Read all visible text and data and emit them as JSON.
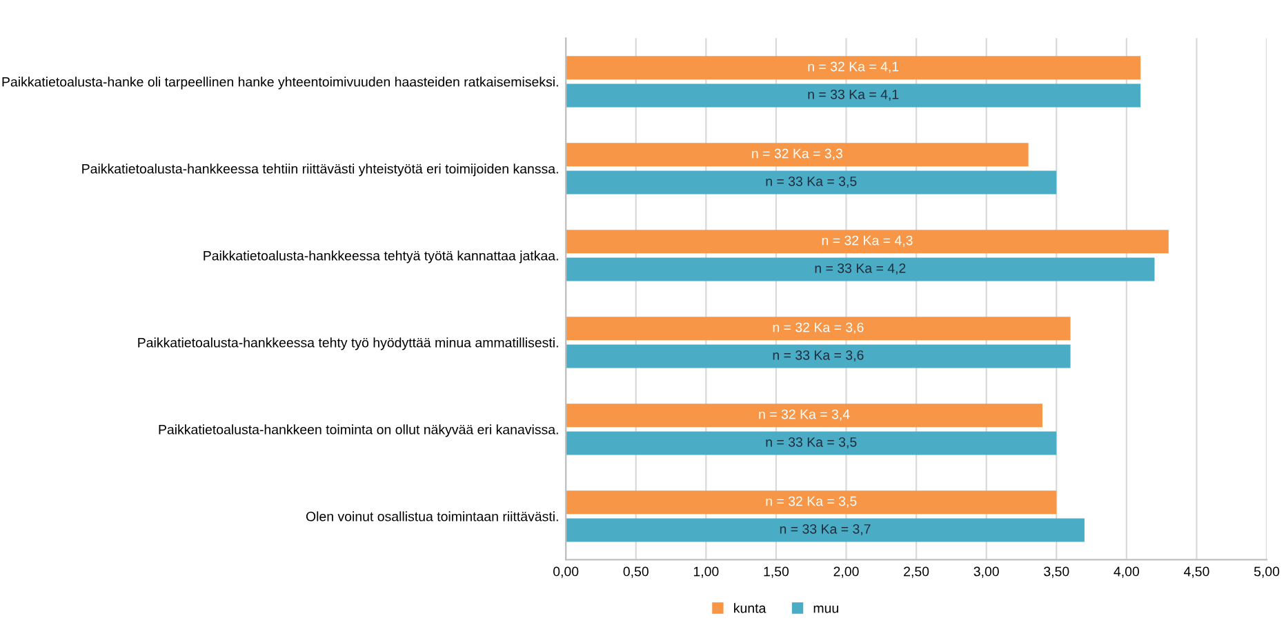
{
  "chart_data": {
    "type": "bar",
    "orientation": "horizontal",
    "categories": [
      "Paikkatietoalusta-hanke oli tarpeellinen hanke yhteentoimivuuden haasteiden ratkaisemiseksi.",
      "Paikkatietoalusta-hankkeessa tehtiin riittävästi yhteistyötä eri toimijoiden kanssa.",
      "Paikkatietoalusta-hankkeessa tehtyä työtä kannattaa jatkaa.",
      "Paikkatietoalusta-hankkeessa tehty työ hyödyttää minua ammatillisesti.",
      "Paikkatietoalusta-hankkeen toiminta on ollut näkyvää eri kanavissa.",
      "Olen voinut osallistua toimintaan riittävästi."
    ],
    "series": [
      {
        "name": "kunta",
        "color": "#f79646",
        "values": [
          4.1,
          3.3,
          4.3,
          3.6,
          3.4,
          3.5
        ],
        "value_labels": [
          "n = 32 Ka = 4,1",
          "n = 32 Ka = 3,3",
          "n = 32 Ka = 4,3",
          "n = 32 Ka = 3,6",
          "n = 32 Ka = 3,4",
          "n = 32 Ka = 3,5"
        ]
      },
      {
        "name": "muu",
        "color": "#4bacc6",
        "values": [
          4.1,
          3.5,
          4.2,
          3.6,
          3.5,
          3.7
        ],
        "value_labels": [
          "n = 33 Ka = 4,1",
          "n = 33 Ka = 3,5",
          "n = 33 Ka = 4,2",
          "n = 33 Ka = 3,6",
          "n = 33 Ka = 3,5",
          "n = 33 Ka = 3,7"
        ]
      }
    ],
    "xlim": [
      0,
      5
    ],
    "xticks": [
      {
        "value": 0,
        "label": "0,00"
      },
      {
        "value": 0.5,
        "label": "0,50"
      },
      {
        "value": 1,
        "label": "1,00"
      },
      {
        "value": 1.5,
        "label": "1,50"
      },
      {
        "value": 2,
        "label": "2,00"
      },
      {
        "value": 2.5,
        "label": "2,50"
      },
      {
        "value": 3,
        "label": "3,00"
      },
      {
        "value": 3.5,
        "label": "3,50"
      },
      {
        "value": 4,
        "label": "4,00"
      },
      {
        "value": 4.5,
        "label": "4,50"
      },
      {
        "value": 5,
        "label": "5,00"
      }
    ],
    "grid": "x",
    "legend": "bottom"
  }
}
